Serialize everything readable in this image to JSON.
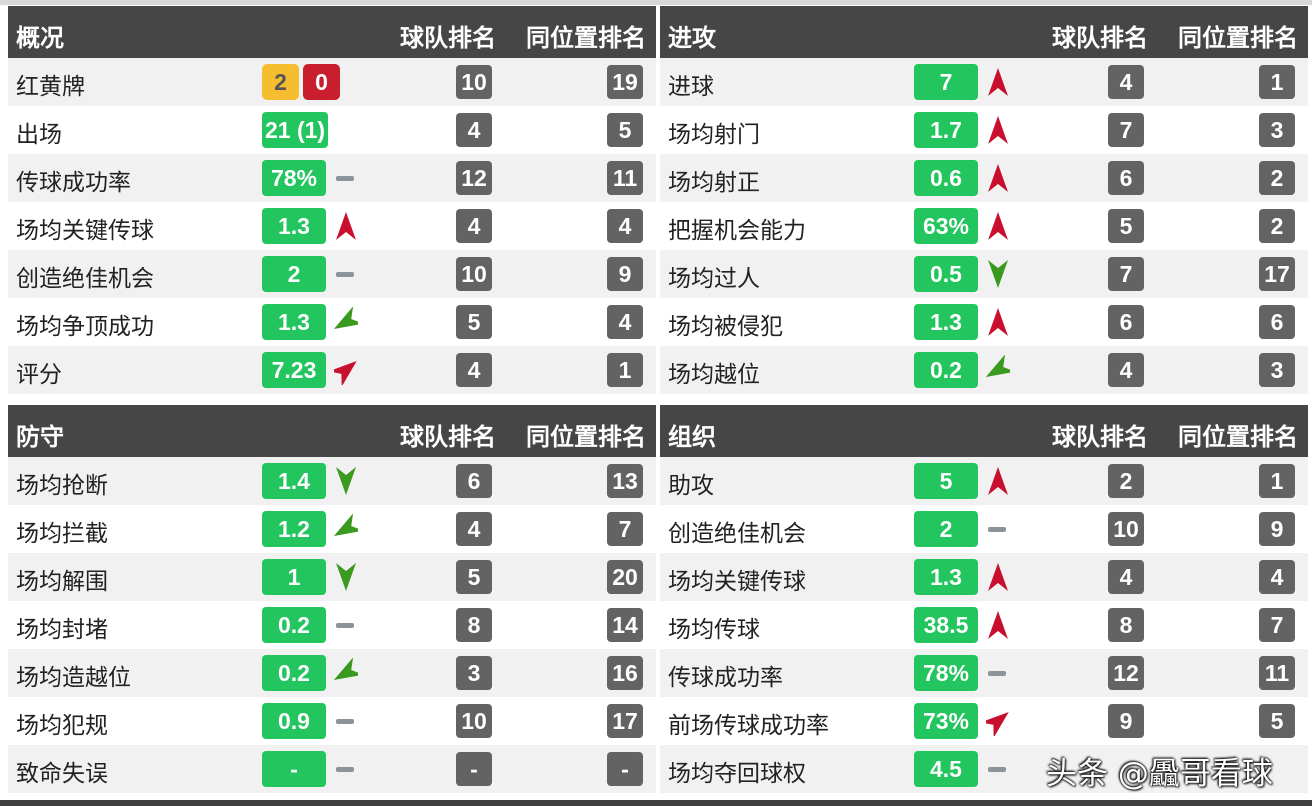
{
  "colors": {
    "header": "#464646",
    "value_badge": "#22c55e",
    "rank_badge": "#636363",
    "yellow_card": "#f5bd2f",
    "red_card": "#c81e2d",
    "trend_up": "#c8102e",
    "trend_down": "#3a9a1f",
    "trend_flat": "#8a949a"
  },
  "col_team_rank": "球队排名",
  "col_position_rank": "同位置排名",
  "sections": [
    {
      "title": "概况",
      "rows": [
        {
          "label": "红黄牌",
          "cards": {
            "yellow": "2",
            "red": "0"
          },
          "trend": "none",
          "team": "10",
          "pos": "19"
        },
        {
          "label": "出场",
          "value": "21 (1)",
          "trend": "none",
          "team": "4",
          "pos": "5"
        },
        {
          "label": "传球成功率",
          "value": "78%",
          "trend": "flat",
          "team": "12",
          "pos": "11"
        },
        {
          "label": "场均关键传球",
          "value": "1.3",
          "trend": "up",
          "team": "4",
          "pos": "4"
        },
        {
          "label": "创造绝佳机会",
          "value": "2",
          "trend": "flat",
          "team": "10",
          "pos": "9"
        },
        {
          "label": "场均争顶成功",
          "value": "1.3",
          "trend": "slight-down",
          "team": "5",
          "pos": "4"
        },
        {
          "label": "评分",
          "value": "7.23",
          "trend": "slight-up",
          "team": "4",
          "pos": "1"
        }
      ]
    },
    {
      "title": "进攻",
      "rows": [
        {
          "label": "进球",
          "value": "7",
          "trend": "up",
          "team": "4",
          "pos": "1"
        },
        {
          "label": "场均射门",
          "value": "1.7",
          "trend": "up",
          "team": "7",
          "pos": "3"
        },
        {
          "label": "场均射正",
          "value": "0.6",
          "trend": "up",
          "team": "6",
          "pos": "2"
        },
        {
          "label": "把握机会能力",
          "value": "63%",
          "trend": "up",
          "team": "5",
          "pos": "2"
        },
        {
          "label": "场均过人",
          "value": "0.5",
          "trend": "down",
          "team": "7",
          "pos": "17"
        },
        {
          "label": "场均被侵犯",
          "value": "1.3",
          "trend": "up",
          "team": "6",
          "pos": "6"
        },
        {
          "label": "场均越位",
          "value": "0.2",
          "trend": "slight-down",
          "team": "4",
          "pos": "3"
        }
      ]
    },
    {
      "title": "防守",
      "rows": [
        {
          "label": "场均抢断",
          "value": "1.4",
          "trend": "down",
          "team": "6",
          "pos": "13"
        },
        {
          "label": "场均拦截",
          "value": "1.2",
          "trend": "slight-down",
          "team": "4",
          "pos": "7"
        },
        {
          "label": "场均解围",
          "value": "1",
          "trend": "down",
          "team": "5",
          "pos": "20"
        },
        {
          "label": "场均封堵",
          "value": "0.2",
          "trend": "flat",
          "team": "8",
          "pos": "14"
        },
        {
          "label": "场均造越位",
          "value": "0.2",
          "trend": "slight-down",
          "team": "3",
          "pos": "16"
        },
        {
          "label": "场均犯规",
          "value": "0.9",
          "trend": "flat",
          "team": "10",
          "pos": "17"
        },
        {
          "label": "致命失误",
          "value": "-",
          "trend": "flat",
          "team": "-",
          "pos": "-"
        }
      ]
    },
    {
      "title": "组织",
      "rows": [
        {
          "label": "助攻",
          "value": "5",
          "trend": "up",
          "team": "2",
          "pos": "1"
        },
        {
          "label": "创造绝佳机会",
          "value": "2",
          "trend": "flat",
          "team": "10",
          "pos": "9"
        },
        {
          "label": "场均关键传球",
          "value": "1.3",
          "trend": "up",
          "team": "4",
          "pos": "4"
        },
        {
          "label": "场均传球",
          "value": "38.5",
          "trend": "up",
          "team": "8",
          "pos": "7"
        },
        {
          "label": "传球成功率",
          "value": "78%",
          "trend": "flat",
          "team": "12",
          "pos": "11"
        },
        {
          "label": "前场传球成功率",
          "value": "73%",
          "trend": "slight-up",
          "team": "9",
          "pos": "5"
        },
        {
          "label": "场均夺回球权",
          "value": "4.5",
          "trend": "flat",
          "team": "",
          "pos": ""
        }
      ]
    }
  ],
  "watermark": "头条 @飍哥看球"
}
